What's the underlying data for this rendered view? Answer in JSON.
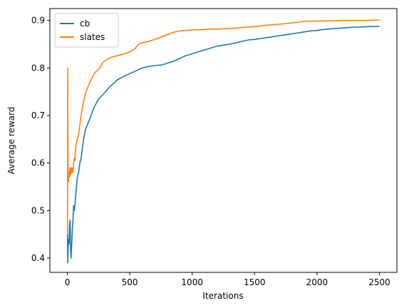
{
  "chart_data": {
    "type": "line",
    "title": "",
    "xlabel": "Iterations",
    "ylabel": "Average reward",
    "xlim": [
      -140,
      2640
    ],
    "ylim": [
      0.37,
      0.925
    ],
    "x_ticks": [
      0,
      500,
      1000,
      1500,
      2000,
      2500
    ],
    "y_ticks": [
      0.4,
      0.5,
      0.6,
      0.7,
      0.8,
      0.9
    ],
    "x_tick_labels": [
      "0",
      "500",
      "1000",
      "1500",
      "2000",
      "2500"
    ],
    "y_tick_labels": [
      "0.4",
      "0.5",
      "0.6",
      "0.7",
      "0.8",
      "0.9"
    ],
    "grid": false,
    "legend_position": "top-left",
    "series": [
      {
        "name": "cb",
        "color": "#1f77b4",
        "points": [
          [
            1,
            0.45
          ],
          [
            3,
            0.39
          ],
          [
            6,
            0.42
          ],
          [
            10,
            0.44
          ],
          [
            14,
            0.43
          ],
          [
            18,
            0.47
          ],
          [
            22,
            0.48
          ],
          [
            26,
            0.42
          ],
          [
            30,
            0.4
          ],
          [
            35,
            0.43
          ],
          [
            40,
            0.46
          ],
          [
            45,
            0.48
          ],
          [
            50,
            0.51
          ],
          [
            55,
            0.5
          ],
          [
            60,
            0.51
          ],
          [
            70,
            0.54
          ],
          [
            80,
            0.57
          ],
          [
            90,
            0.58
          ],
          [
            100,
            0.6
          ],
          [
            110,
            0.61
          ],
          [
            120,
            0.63
          ],
          [
            130,
            0.65
          ],
          [
            145,
            0.67
          ],
          [
            160,
            0.68
          ],
          [
            175,
            0.69
          ],
          [
            190,
            0.7
          ],
          [
            210,
            0.715
          ],
          [
            230,
            0.725
          ],
          [
            250,
            0.735
          ],
          [
            270,
            0.74
          ],
          [
            300,
            0.748
          ],
          [
            330,
            0.758
          ],
          [
            360,
            0.765
          ],
          [
            400,
            0.775
          ],
          [
            450,
            0.782
          ],
          [
            500,
            0.788
          ],
          [
            550,
            0.794
          ],
          [
            600,
            0.8
          ],
          [
            650,
            0.803
          ],
          [
            700,
            0.805
          ],
          [
            750,
            0.806
          ],
          [
            800,
            0.81
          ],
          [
            850,
            0.814
          ],
          [
            900,
            0.82
          ],
          [
            950,
            0.826
          ],
          [
            1000,
            0.83
          ],
          [
            1050,
            0.834
          ],
          [
            1100,
            0.838
          ],
          [
            1150,
            0.842
          ],
          [
            1200,
            0.846
          ],
          [
            1250,
            0.848
          ],
          [
            1300,
            0.85
          ],
          [
            1350,
            0.853
          ],
          [
            1400,
            0.856
          ],
          [
            1450,
            0.859
          ],
          [
            1500,
            0.86
          ],
          [
            1550,
            0.862
          ],
          [
            1600,
            0.864
          ],
          [
            1650,
            0.866
          ],
          [
            1700,
            0.868
          ],
          [
            1750,
            0.87
          ],
          [
            1800,
            0.872
          ],
          [
            1850,
            0.874
          ],
          [
            1900,
            0.876
          ],
          [
            1950,
            0.878
          ],
          [
            2000,
            0.879
          ],
          [
            2050,
            0.881
          ],
          [
            2100,
            0.882
          ],
          [
            2150,
            0.883
          ],
          [
            2200,
            0.884
          ],
          [
            2250,
            0.885
          ],
          [
            2300,
            0.886
          ],
          [
            2350,
            0.886
          ],
          [
            2400,
            0.887
          ],
          [
            2450,
            0.887
          ],
          [
            2500,
            0.888
          ]
        ]
      },
      {
        "name": "slates",
        "color": "#ff7f0e",
        "points": [
          [
            1,
            0.45
          ],
          [
            3,
            0.8
          ],
          [
            5,
            0.6
          ],
          [
            8,
            0.56
          ],
          [
            12,
            0.58
          ],
          [
            16,
            0.57
          ],
          [
            20,
            0.59
          ],
          [
            25,
            0.575
          ],
          [
            30,
            0.59
          ],
          [
            35,
            0.58
          ],
          [
            40,
            0.59
          ],
          [
            45,
            0.58
          ],
          [
            50,
            0.6
          ],
          [
            55,
            0.61
          ],
          [
            60,
            0.605
          ],
          [
            65,
            0.63
          ],
          [
            70,
            0.64
          ],
          [
            80,
            0.65
          ],
          [
            90,
            0.66
          ],
          [
            100,
            0.68
          ],
          [
            110,
            0.7
          ],
          [
            120,
            0.715
          ],
          [
            130,
            0.73
          ],
          [
            140,
            0.74
          ],
          [
            150,
            0.75
          ],
          [
            165,
            0.76
          ],
          [
            180,
            0.77
          ],
          [
            200,
            0.78
          ],
          [
            220,
            0.79
          ],
          [
            240,
            0.795
          ],
          [
            260,
            0.8
          ],
          [
            280,
            0.81
          ],
          [
            300,
            0.815
          ],
          [
            330,
            0.82
          ],
          [
            360,
            0.823
          ],
          [
            400,
            0.826
          ],
          [
            430,
            0.828
          ],
          [
            460,
            0.83
          ],
          [
            500,
            0.834
          ],
          [
            540,
            0.84
          ],
          [
            570,
            0.85
          ],
          [
            600,
            0.853
          ],
          [
            650,
            0.856
          ],
          [
            700,
            0.86
          ],
          [
            750,
            0.865
          ],
          [
            800,
            0.87
          ],
          [
            850,
            0.875
          ],
          [
            900,
            0.878
          ],
          [
            950,
            0.879
          ],
          [
            1000,
            0.88
          ],
          [
            1100,
            0.881
          ],
          [
            1200,
            0.882
          ],
          [
            1300,
            0.883
          ],
          [
            1400,
            0.885
          ],
          [
            1500,
            0.887
          ],
          [
            1600,
            0.89
          ],
          [
            1700,
            0.892
          ],
          [
            1800,
            0.895
          ],
          [
            1900,
            0.898
          ],
          [
            2000,
            0.899
          ],
          [
            2100,
            0.899
          ],
          [
            2200,
            0.9
          ],
          [
            2300,
            0.9
          ],
          [
            2400,
            0.9
          ],
          [
            2500,
            0.901
          ]
        ]
      }
    ]
  }
}
